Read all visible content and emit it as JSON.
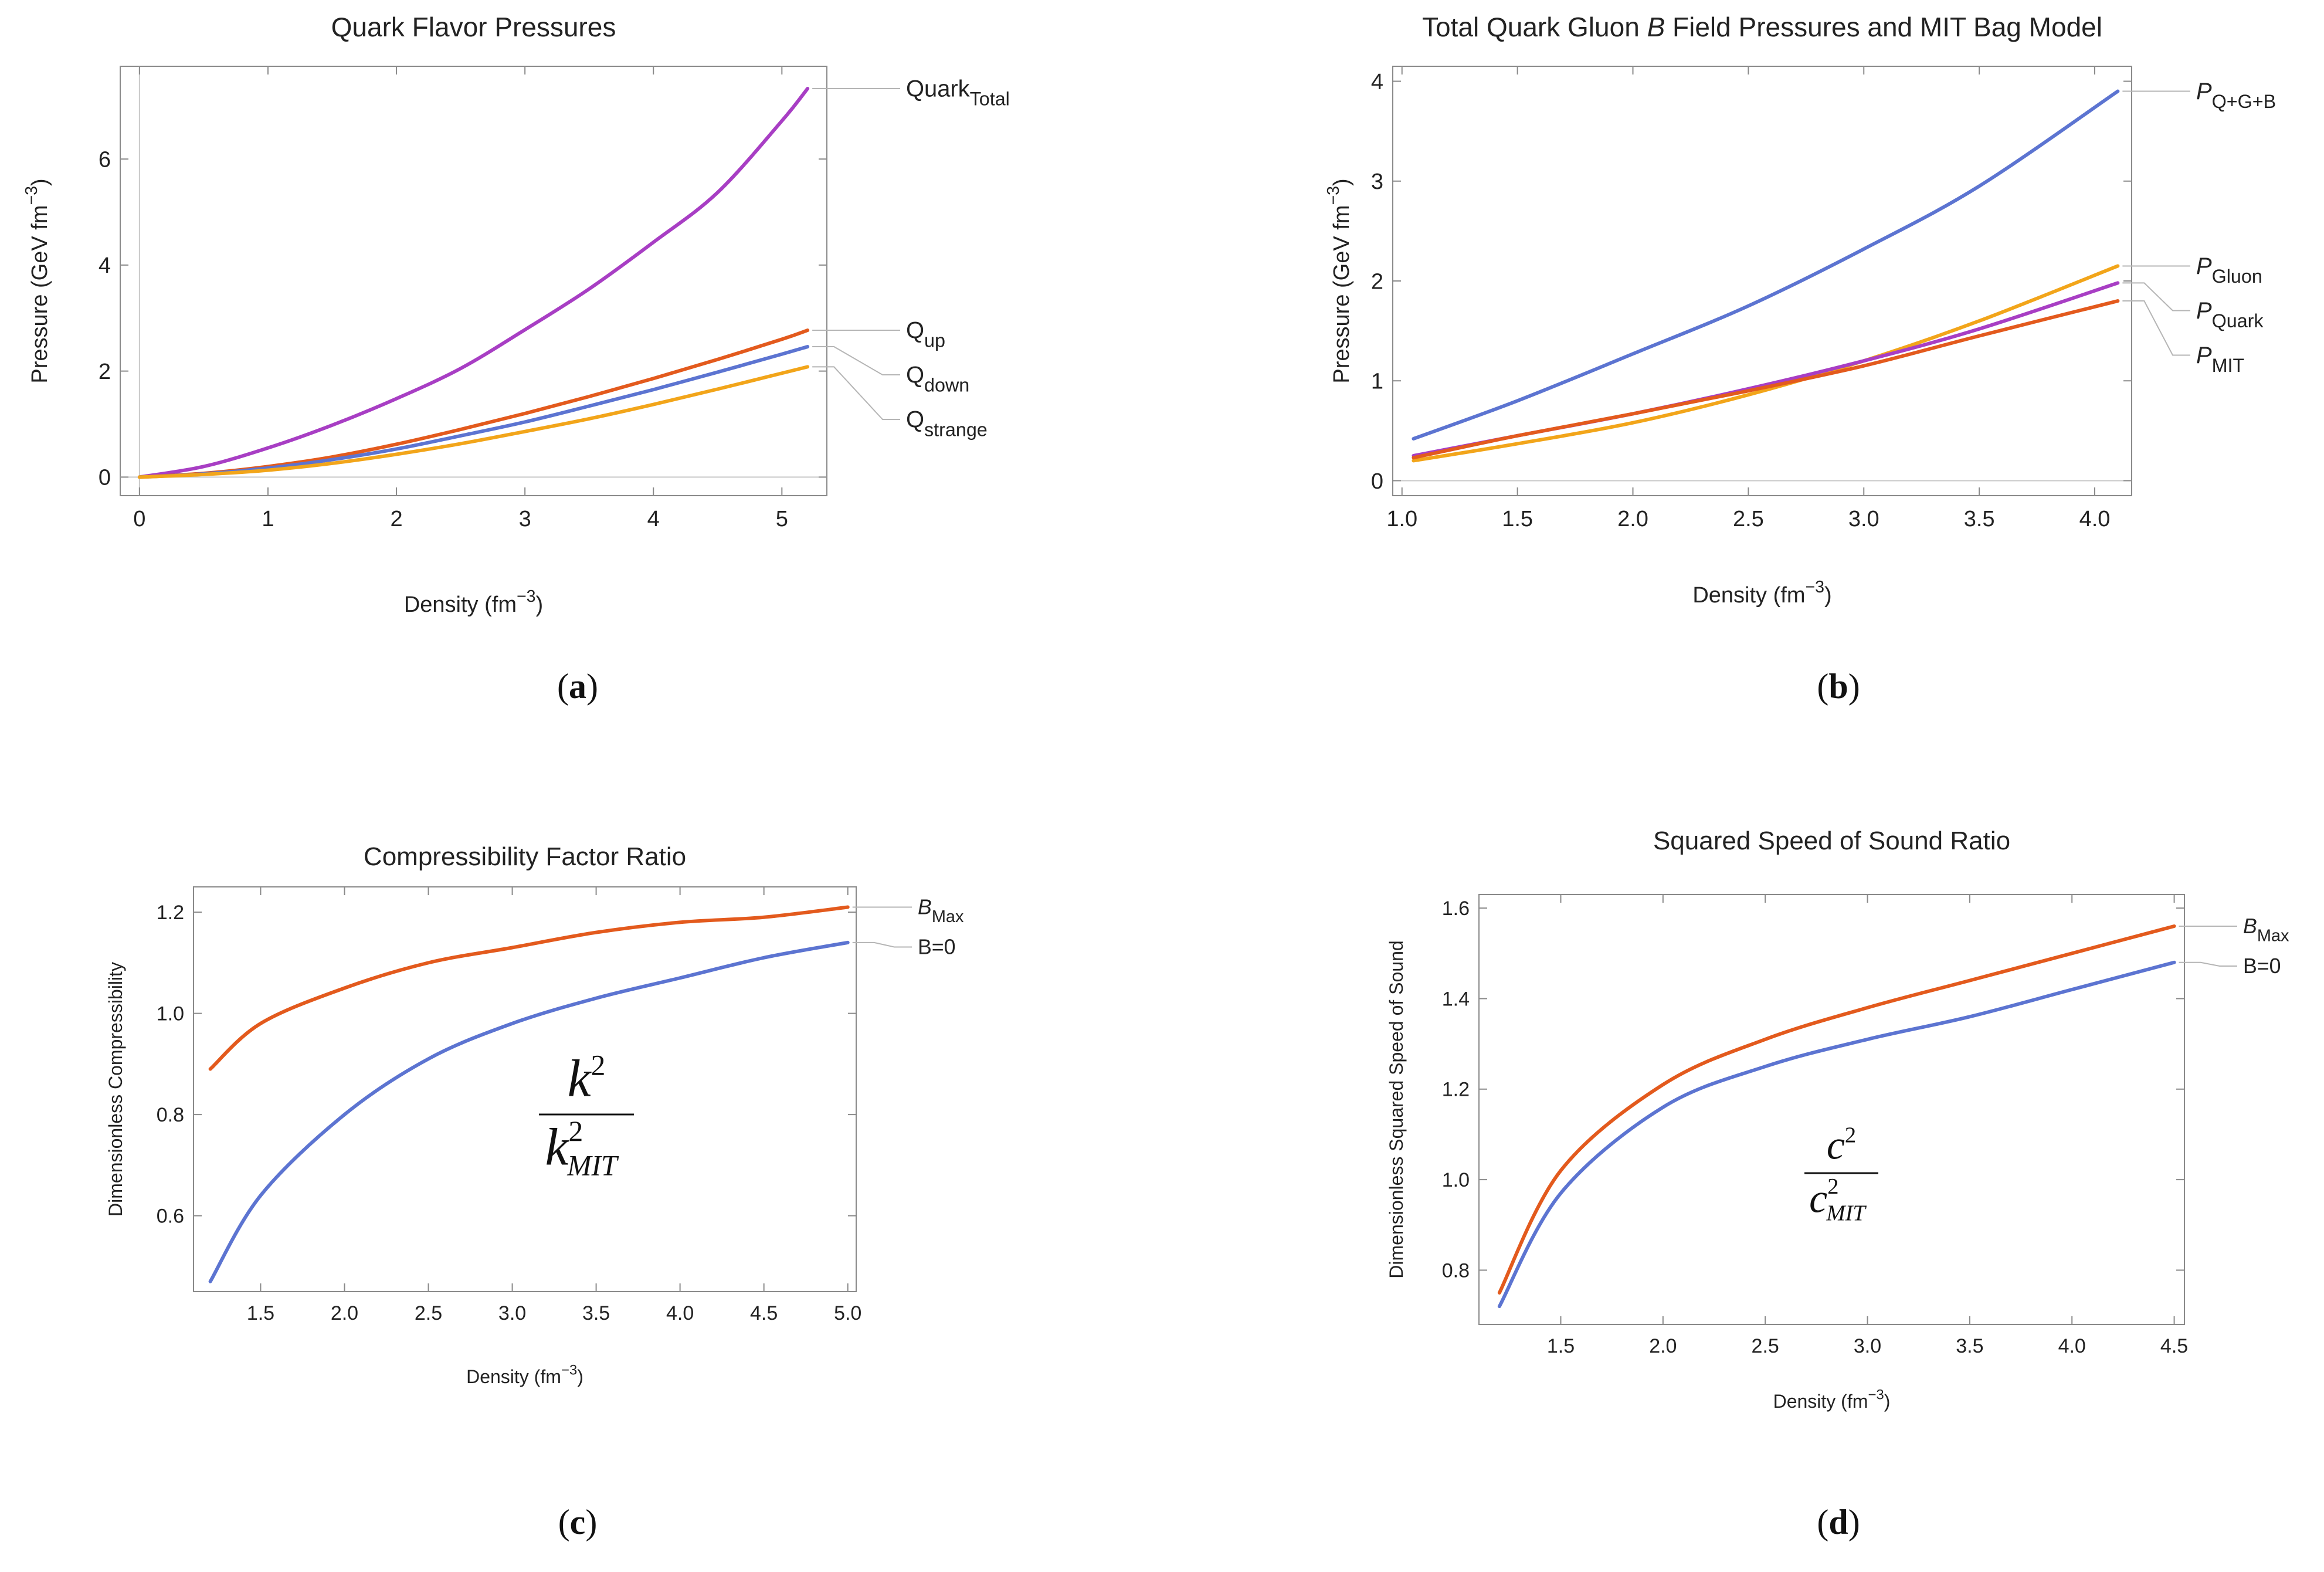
{
  "chart_data": [
    {
      "type": "line",
      "title": "Quark Flavor Pressures",
      "xlabel": "Density (fm",
      "xlabel_sup": "−3",
      "xlabel_end": ")",
      "ylabel": "Pressure (GeV fm",
      "ylabel_sup": "−3",
      "ylabel_end": ")",
      "xlim": [
        -0.15,
        5.35
      ],
      "ylim": [
        -0.35,
        7.75
      ],
      "xticks": [
        0,
        1,
        2,
        3,
        4,
        5
      ],
      "xtick_labels": [
        "0",
        "1",
        "2",
        "3",
        "4",
        "5"
      ],
      "yticks": [
        0,
        2,
        4,
        6
      ],
      "ytick_labels": [
        "0",
        "2",
        "4",
        "6"
      ],
      "panel_label": "(a)",
      "series": [
        {
          "name": "Quark",
          "name_sub": "Total",
          "color": "#a83ec4",
          "x": [
            0,
            0.5,
            1,
            1.5,
            2,
            2.5,
            3,
            3.5,
            4,
            4.5,
            5,
            5.2
          ],
          "y": [
            0,
            0.2,
            0.55,
            0.98,
            1.48,
            2.05,
            2.78,
            3.55,
            4.43,
            5.37,
            6.72,
            7.33
          ]
        },
        {
          "name": "Q",
          "name_sub": "up",
          "color": "#e35a1d",
          "x": [
            0,
            0.5,
            1,
            1.5,
            2,
            2.5,
            3,
            3.5,
            4,
            4.5,
            5,
            5.2
          ],
          "y": [
            0,
            0.07,
            0.2,
            0.38,
            0.62,
            0.9,
            1.2,
            1.52,
            1.86,
            2.22,
            2.6,
            2.77
          ]
        },
        {
          "name": "Q",
          "name_sub": "down",
          "color": "#5c74d1",
          "x": [
            0,
            0.5,
            1,
            1.5,
            2,
            2.5,
            3,
            3.5,
            4,
            4.5,
            5,
            5.2
          ],
          "y": [
            0,
            0.06,
            0.17,
            0.33,
            0.53,
            0.78,
            1.04,
            1.34,
            1.65,
            1.98,
            2.32,
            2.46
          ]
        },
        {
          "name": "Q",
          "name_sub": "strange",
          "color": "#f2a51a",
          "x": [
            0,
            0.5,
            1,
            1.5,
            2,
            2.5,
            3,
            3.5,
            4,
            4.5,
            5,
            5.2
          ],
          "y": [
            0,
            0.05,
            0.13,
            0.26,
            0.43,
            0.63,
            0.86,
            1.1,
            1.37,
            1.66,
            1.96,
            2.08
          ]
        }
      ]
    },
    {
      "type": "line",
      "title_pre": "Total Quark Gluon ",
      "title_italic": "B",
      "title_post": " Field Pressures and MIT Bag Model",
      "xlabel": "Density (fm",
      "xlabel_sup": "−3",
      "xlabel_end": ")",
      "ylabel": "Pressure (GeV fm",
      "ylabel_sup": "−3",
      "ylabel_end": ")",
      "xlim": [
        0.96,
        4.16
      ],
      "ylim": [
        -0.15,
        4.15
      ],
      "xticks": [
        1.0,
        1.5,
        2.0,
        2.5,
        3.0,
        3.5,
        4.0
      ],
      "xtick_labels": [
        "1.0",
        "1.5",
        "2.0",
        "2.5",
        "3.0",
        "3.5",
        "4.0"
      ],
      "yticks": [
        0,
        1,
        2,
        3,
        4
      ],
      "ytick_labels": [
        "0",
        "1",
        "2",
        "3",
        "4"
      ],
      "panel_label": "(b)",
      "series": [
        {
          "name": "P",
          "name_sub": "Q+G+B",
          "color": "#5c74d1",
          "x": [
            1.05,
            1.5,
            2.0,
            2.5,
            3.0,
            3.5,
            4.1
          ],
          "y": [
            0.42,
            0.8,
            1.27,
            1.75,
            2.32,
            2.95,
            3.9
          ]
        },
        {
          "name": "P",
          "name_sub": "Gluon",
          "color": "#f2a51a",
          "x": [
            1.05,
            1.5,
            2.0,
            2.5,
            3.0,
            3.5,
            4.1
          ],
          "y": [
            0.2,
            0.37,
            0.58,
            0.86,
            1.2,
            1.6,
            2.15
          ]
        },
        {
          "name": "P",
          "name_sub": "Quark",
          "color": "#a83ec4",
          "x": [
            1.05,
            1.5,
            2.0,
            2.5,
            3.0,
            3.5,
            4.1
          ],
          "y": [
            0.25,
            0.45,
            0.67,
            0.92,
            1.2,
            1.52,
            1.98
          ]
        },
        {
          "name": "P",
          "name_sub": "MIT",
          "color": "#e35a1d",
          "x": [
            1.05,
            1.5,
            2.0,
            2.5,
            3.0,
            3.5,
            4.1
          ],
          "y": [
            0.23,
            0.45,
            0.67,
            0.9,
            1.15,
            1.45,
            1.8
          ]
        }
      ]
    },
    {
      "type": "line",
      "title": "Compressibility Factor Ratio",
      "xlabel": "Density (fm",
      "xlabel_sup": "−3",
      "xlabel_end": ")",
      "ylabel": "Dimensionless Compressibility",
      "xlim": [
        1.1,
        5.05
      ],
      "ylim": [
        0.45,
        1.25
      ],
      "xticks": [
        1.5,
        2.0,
        2.5,
        3.0,
        3.5,
        4.0,
        4.5,
        5.0
      ],
      "xtick_labels": [
        "1.5",
        "2.0",
        "2.5",
        "3.0",
        "3.5",
        "4.0",
        "4.5",
        "5.0"
      ],
      "yticks": [
        0.6,
        0.8,
        1.0,
        1.2
      ],
      "ytick_labels": [
        "0.6",
        "0.8",
        "1.0",
        "1.2"
      ],
      "annotation": {
        "num": "k",
        "den": "k",
        "den_sub": "MIT",
        "exp": "2"
      },
      "panel_label": "(c)",
      "series": [
        {
          "name": "B",
          "name_sub": "Max",
          "italic": true,
          "color": "#e35a1d",
          "x": [
            1.2,
            1.5,
            2.0,
            2.5,
            3.0,
            3.5,
            4.0,
            4.5,
            5.0
          ],
          "y": [
            0.89,
            0.98,
            1.05,
            1.1,
            1.13,
            1.16,
            1.18,
            1.19,
            1.21
          ]
        },
        {
          "name": "B=0",
          "color": "#5c74d1",
          "x": [
            1.2,
            1.5,
            2.0,
            2.5,
            3.0,
            3.5,
            4.0,
            4.5,
            5.0
          ],
          "y": [
            0.47,
            0.64,
            0.8,
            0.91,
            0.98,
            1.03,
            1.07,
            1.11,
            1.14
          ]
        }
      ]
    },
    {
      "type": "line",
      "title": "Squared Speed of Sound Ratio",
      "xlabel": "Density (fm",
      "xlabel_sup": "−3",
      "xlabel_end": ")",
      "ylabel": "Dimensionless Squared Speed of Sound",
      "xlim": [
        1.1,
        4.55
      ],
      "ylim": [
        0.68,
        1.63
      ],
      "xticks": [
        1.5,
        2.0,
        2.5,
        3.0,
        3.5,
        4.0,
        4.5
      ],
      "xtick_labels": [
        "1.5",
        "2.0",
        "2.5",
        "3.0",
        "3.5",
        "4.0",
        "4.5"
      ],
      "yticks": [
        0.8,
        1.0,
        1.2,
        1.4,
        1.6
      ],
      "ytick_labels": [
        "0.8",
        "1.0",
        "1.2",
        "1.4",
        "1.6"
      ],
      "annotation": {
        "num": "c",
        "den": "c",
        "den_sub": "MIT",
        "exp": "2"
      },
      "panel_label": "(d)",
      "series": [
        {
          "name": "B",
          "name_sub": "Max",
          "italic": true,
          "color": "#e35a1d",
          "x": [
            1.2,
            1.5,
            2.0,
            2.5,
            3.0,
            3.5,
            4.0,
            4.5
          ],
          "y": [
            0.75,
            1.02,
            1.21,
            1.31,
            1.38,
            1.44,
            1.5,
            1.56
          ]
        },
        {
          "name": "B=0",
          "color": "#5c74d1",
          "x": [
            1.2,
            1.5,
            2.0,
            2.5,
            3.0,
            3.5,
            4.0,
            4.5
          ],
          "y": [
            0.72,
            0.97,
            1.16,
            1.25,
            1.31,
            1.36,
            1.42,
            1.48
          ]
        }
      ]
    }
  ]
}
